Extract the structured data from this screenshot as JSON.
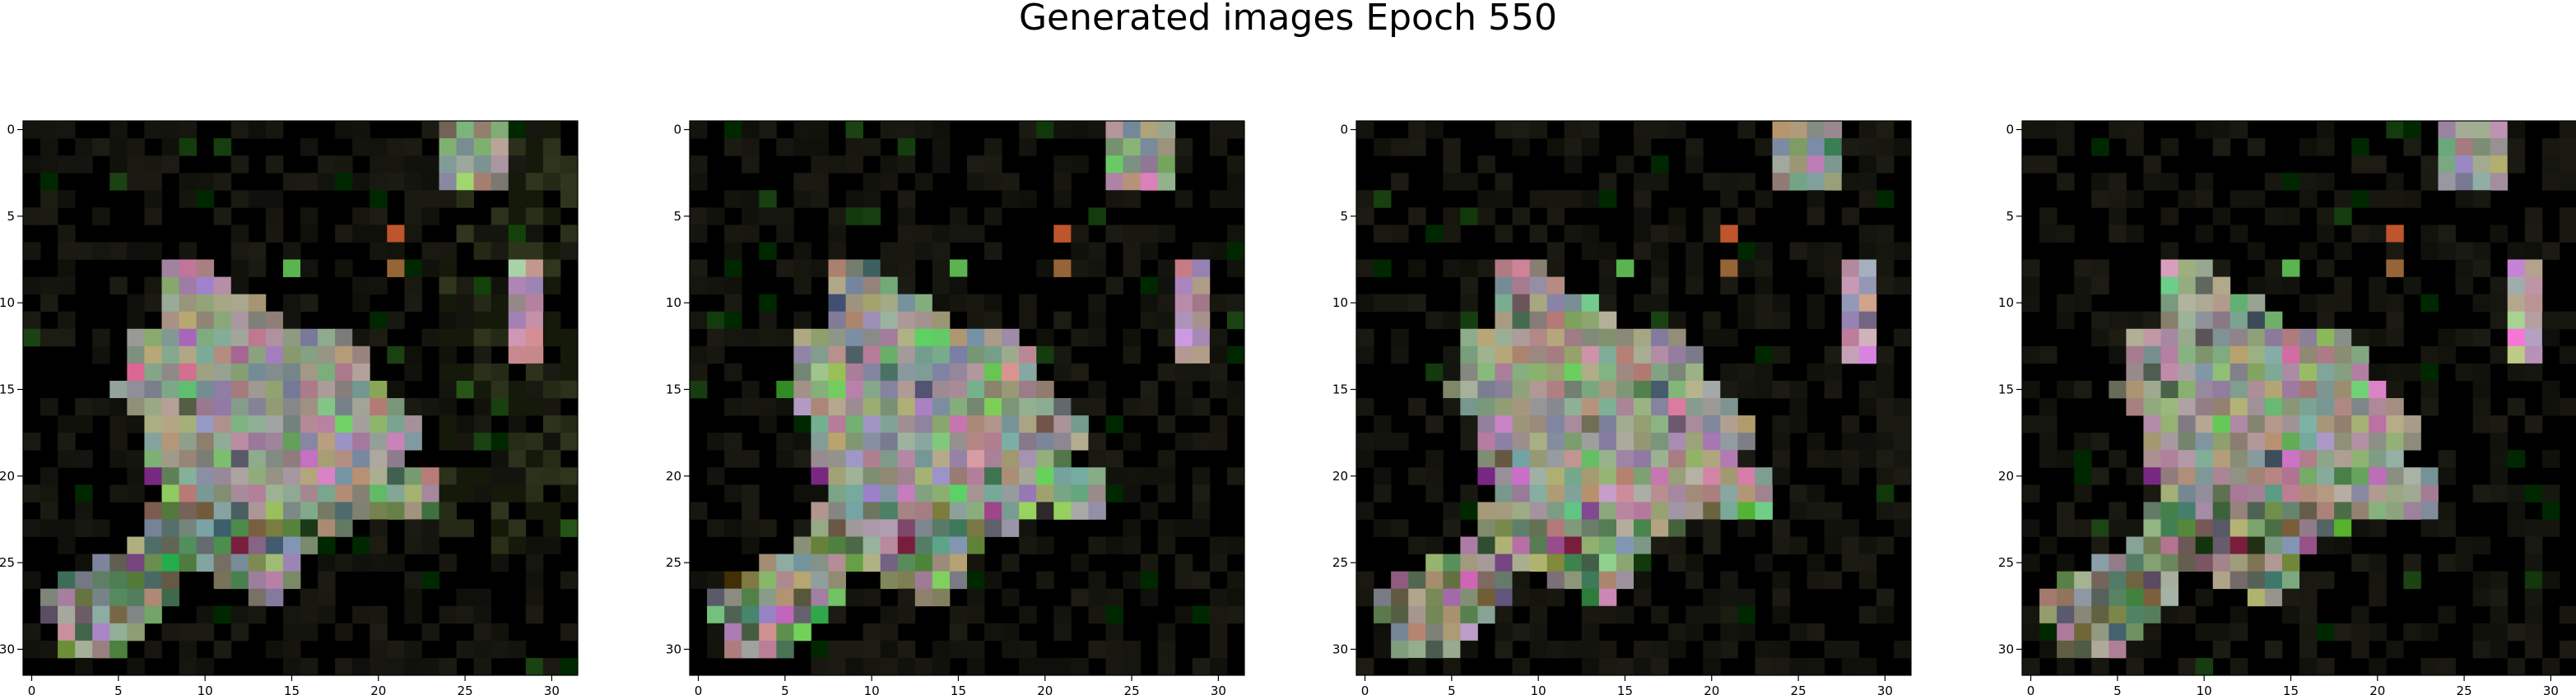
{
  "title": "Generated images Epoch 550",
  "chart_data": [
    {
      "type": "heatmap",
      "panel": 1,
      "xlim": [
        0,
        31
      ],
      "ylim": [
        31,
        0
      ],
      "xticks": [
        "0",
        "5",
        "10",
        "15",
        "20",
        "25",
        "30"
      ],
      "yticks": [
        "0",
        "5",
        "10",
        "15",
        "20",
        "25",
        "30"
      ]
    },
    {
      "type": "heatmap",
      "panel": 2,
      "xlim": [
        0,
        31
      ],
      "ylim": [
        31,
        0
      ],
      "xticks": [
        "0",
        "5",
        "10",
        "15",
        "20",
        "25",
        "30"
      ],
      "yticks": [
        "0",
        "5",
        "10",
        "15",
        "20",
        "25",
        "30"
      ]
    },
    {
      "type": "heatmap",
      "panel": 3,
      "xlim": [
        0,
        31
      ],
      "ylim": [
        31,
        0
      ],
      "xticks": [
        "0",
        "5",
        "10",
        "15",
        "20",
        "25",
        "30"
      ],
      "yticks": [
        "0",
        "5",
        "10",
        "15",
        "20",
        "25",
        "30"
      ]
    },
    {
      "type": "heatmap",
      "panel": 4,
      "xlim": [
        0,
        31
      ],
      "ylim": [
        31,
        0
      ],
      "xticks": [
        "0",
        "5",
        "10",
        "15",
        "20",
        "25",
        "30"
      ],
      "yticks": [
        "0",
        "5",
        "10",
        "15",
        "20",
        "25",
        "30"
      ]
    }
  ]
}
